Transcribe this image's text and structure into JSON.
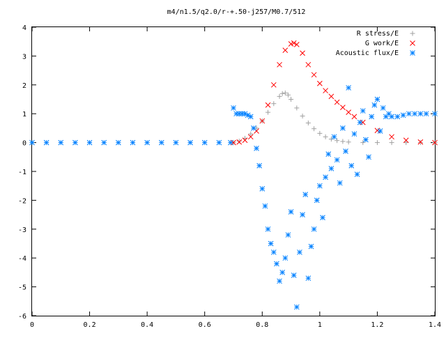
{
  "chart_data": {
    "type": "scatter",
    "title": "m4/n1.5/q2.0/r-+.50-j257/M0.7/512",
    "xlabel": "",
    "ylabel": "",
    "xlim": [
      0,
      1.4
    ],
    "ylim": [
      -6,
      4
    ],
    "x_ticks": [
      "0",
      "0.2",
      "0.4",
      "0.6",
      "0.8",
      "1",
      "1.2",
      "1.4"
    ],
    "y_ticks": [
      "4",
      "3",
      "2",
      "1",
      "0",
      "-1",
      "-2",
      "-3",
      "-4",
      "-5",
      "-6"
    ],
    "grid": false,
    "legend_position": "top-right",
    "series": [
      {
        "name": "R stress/E",
        "marker": "plus",
        "color": "#a0a0a0",
        "x": [
          0.7,
          0.72,
          0.74,
          0.76,
          0.78,
          0.8,
          0.82,
          0.84,
          0.86,
          0.87,
          0.88,
          0.89,
          0.9,
          0.92,
          0.94,
          0.96,
          0.98,
          1.0,
          1.02,
          1.04,
          1.06,
          1.08,
          1.1,
          1.15,
          1.2,
          1.25,
          1.3,
          1.35,
          1.4
        ],
        "y": [
          0.0,
          0.05,
          0.15,
          0.3,
          0.5,
          0.75,
          1.05,
          1.35,
          1.6,
          1.7,
          1.72,
          1.65,
          1.5,
          1.2,
          0.92,
          0.68,
          0.48,
          0.32,
          0.2,
          0.12,
          0.07,
          0.04,
          0.02,
          0.0,
          0.0,
          0.0,
          0.0,
          0.0,
          0.0
        ]
      },
      {
        "name": "G work/E",
        "marker": "cross",
        "color": "#ff0000",
        "x": [
          0.7,
          0.72,
          0.74,
          0.76,
          0.78,
          0.8,
          0.82,
          0.84,
          0.86,
          0.88,
          0.9,
          0.91,
          0.92,
          0.94,
          0.96,
          0.98,
          1.0,
          1.02,
          1.04,
          1.06,
          1.08,
          1.1,
          1.12,
          1.15,
          1.2,
          1.25,
          1.3,
          1.35,
          1.4
        ],
        "y": [
          0.0,
          0.02,
          0.08,
          0.2,
          0.4,
          0.75,
          1.3,
          2.0,
          2.7,
          3.2,
          3.42,
          3.45,
          3.4,
          3.1,
          2.7,
          2.35,
          2.05,
          1.8,
          1.6,
          1.4,
          1.22,
          1.05,
          0.9,
          0.7,
          0.42,
          0.2,
          0.08,
          0.02,
          0.0
        ]
      },
      {
        "name": "Acoustic flux/E",
        "marker": "star",
        "color": "#0080ff",
        "x": [
          0.0,
          0.05,
          0.1,
          0.15,
          0.2,
          0.25,
          0.3,
          0.35,
          0.4,
          0.45,
          0.5,
          0.55,
          0.6,
          0.65,
          0.69,
          0.7,
          0.71,
          0.72,
          0.73,
          0.74,
          0.75,
          0.76,
          0.77,
          0.78,
          0.79,
          0.8,
          0.81,
          0.82,
          0.83,
          0.84,
          0.85,
          0.86,
          0.87,
          0.88,
          0.89,
          0.9,
          0.91,
          0.92,
          0.93,
          0.94,
          0.95,
          0.96,
          0.97,
          0.98,
          0.99,
          1.0,
          1.01,
          1.02,
          1.03,
          1.04,
          1.05,
          1.06,
          1.07,
          1.08,
          1.09,
          1.1,
          1.11,
          1.12,
          1.13,
          1.14,
          1.15,
          1.16,
          1.17,
          1.18,
          1.19,
          1.2,
          1.21,
          1.22,
          1.23,
          1.24,
          1.25,
          1.27,
          1.29,
          1.31,
          1.33,
          1.35,
          1.37,
          1.4
        ],
        "y": [
          0.0,
          0.0,
          0.0,
          0.0,
          0.0,
          0.0,
          0.0,
          0.0,
          0.0,
          0.0,
          0.0,
          0.0,
          0.0,
          0.0,
          0.0,
          1.2,
          1.0,
          1.0,
          1.0,
          1.0,
          0.95,
          0.9,
          0.5,
          -0.2,
          -0.8,
          -1.6,
          -2.2,
          -3.0,
          -3.5,
          -3.8,
          -4.2,
          -4.8,
          -4.5,
          -4.0,
          -3.2,
          -2.4,
          -4.6,
          -5.7,
          -3.8,
          -2.5,
          -1.8,
          -4.7,
          -3.6,
          -3.0,
          -2.0,
          -1.5,
          -2.6,
          -1.2,
          -0.4,
          -0.9,
          0.2,
          -0.6,
          -1.4,
          0.5,
          -0.3,
          1.9,
          -0.8,
          0.3,
          -1.1,
          0.7,
          1.1,
          0.1,
          -0.5,
          0.9,
          1.3,
          1.5,
          0.4,
          1.2,
          0.9,
          1.0,
          0.9,
          0.9,
          0.95,
          1.0,
          1.0,
          1.0,
          1.0,
          1.0
        ]
      }
    ]
  }
}
